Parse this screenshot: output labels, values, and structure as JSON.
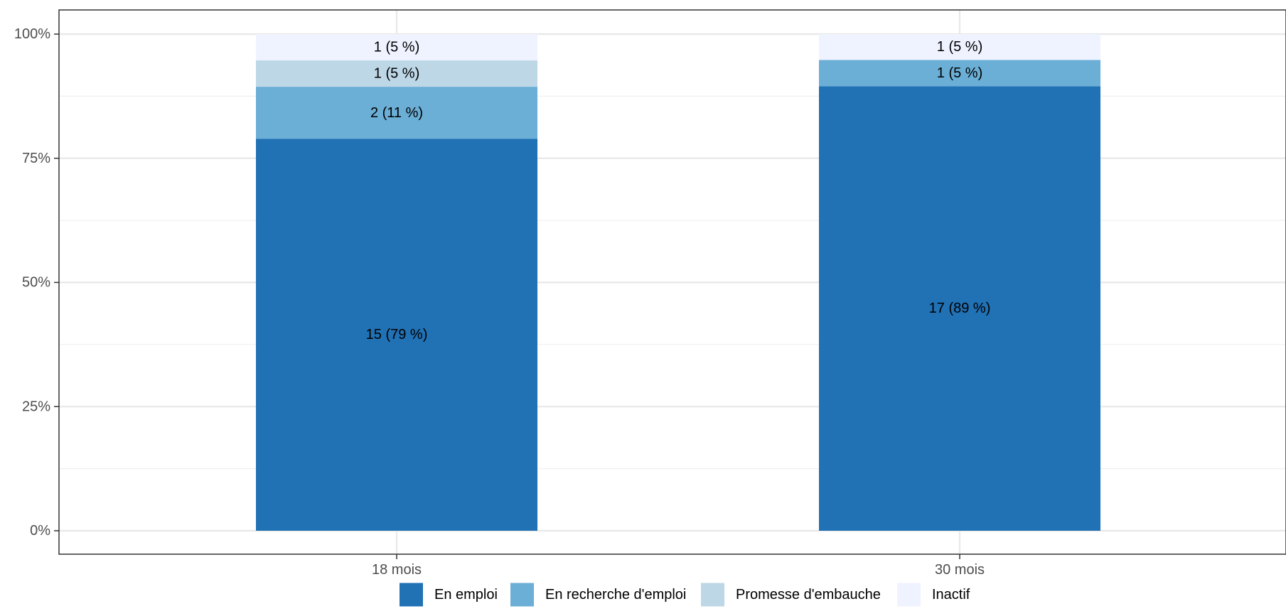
{
  "chart_data": {
    "type": "bar",
    "stacked": true,
    "normalized": true,
    "title": "",
    "xlabel": "",
    "ylabel": "",
    "categories": [
      "18 mois",
      "30 mois"
    ],
    "ylim": [
      0,
      1
    ],
    "y_ticks": [
      0,
      0.25,
      0.5,
      0.75,
      1
    ],
    "y_tick_labels": [
      "0%",
      "25%",
      "50%",
      "75%",
      "100%"
    ],
    "grid": true,
    "legend_position": "bottom",
    "series": [
      {
        "name": "En emploi",
        "color": "#2171b5",
        "counts": [
          15,
          17
        ],
        "values": [
          0.789,
          0.895
        ],
        "labels": [
          "15 (79 %)",
          "17 (89 %)"
        ]
      },
      {
        "name": "En recherche d'emploi",
        "color": "#6baed6",
        "counts": [
          2,
          1
        ],
        "values": [
          0.105,
          0.053
        ],
        "labels": [
          "2 (11 %)",
          "1 (5 %)"
        ]
      },
      {
        "name": "Promesse d'embauche",
        "color": "#bdd7e7",
        "counts": [
          1,
          0
        ],
        "values": [
          0.053,
          0
        ],
        "labels": [
          "1 (5 %)",
          ""
        ]
      },
      {
        "name": "Inactif",
        "color": "#eff3ff",
        "counts": [
          1,
          1
        ],
        "values": [
          0.053,
          0.053
        ],
        "labels": [
          "1 (5 %)",
          "1 (5 %)"
        ]
      }
    ]
  }
}
